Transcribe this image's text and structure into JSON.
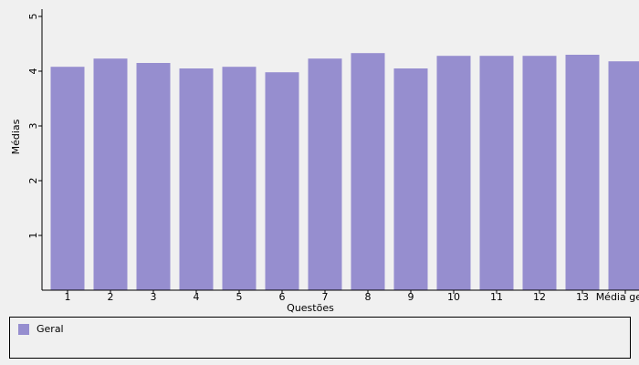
{
  "chart_data": {
    "type": "bar",
    "x_label": "Questões",
    "y_label": "Médias",
    "categories": [
      "1",
      "2",
      "3",
      "4",
      "5",
      "6",
      "7",
      "8",
      "9",
      "10",
      "11",
      "12",
      "13",
      "Média geral"
    ],
    "series": [
      {
        "name": "Geral",
        "color": "#968ecf",
        "values": [
          4.08,
          4.23,
          4.15,
          4.05,
          4.08,
          3.98,
          4.23,
          4.33,
          4.05,
          4.28,
          4.28,
          4.28,
          4.3,
          4.18
        ]
      }
    ],
    "ylim": [
      0,
      5
    ],
    "yticks": [
      1,
      2,
      3,
      4,
      5
    ]
  }
}
